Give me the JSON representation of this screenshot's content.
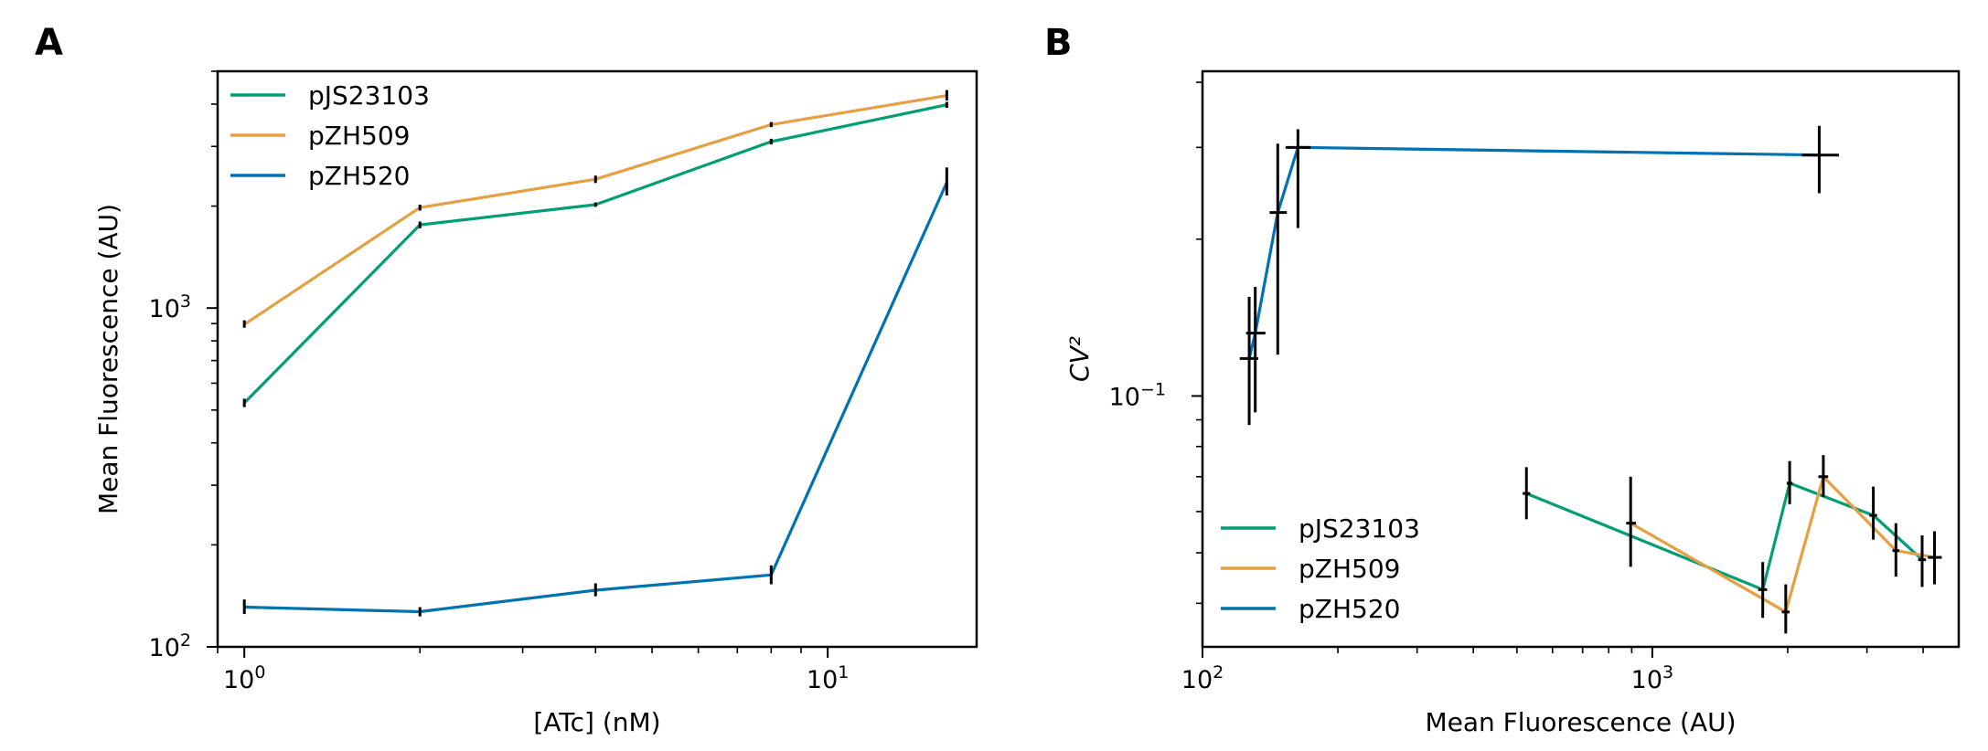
{
  "panels": {
    "a_label": "A",
    "b_label": "B"
  },
  "chart_data": [
    {
      "type": "line",
      "panel": "A",
      "xlabel": "[ATc] (nM)",
      "ylabel": "Mean Fluorescence (AU)",
      "xscale": "log",
      "yscale": "log",
      "xlim": [
        0.9,
        18
      ],
      "ylim": [
        100,
        5000
      ],
      "x_ticks": [
        {
          "value": 1,
          "base": "10",
          "exp": "0"
        },
        {
          "value": 10,
          "base": "10",
          "exp": "1"
        }
      ],
      "y_ticks": [
        {
          "value": 100,
          "base": "10",
          "exp": "2"
        },
        {
          "value": 1000,
          "base": "10",
          "exp": "3"
        }
      ],
      "legend_position": "top-left",
      "grid": false,
      "series": [
        {
          "name": "pJS23103",
          "color": "#009e73",
          "points": [
            {
              "x": 1,
              "y": 525,
              "y_lo": 510,
              "y_hi": 540
            },
            {
              "x": 2,
              "y": 1760,
              "y_lo": 1720,
              "y_hi": 1800
            },
            {
              "x": 4,
              "y": 2020,
              "y_lo": 1990,
              "y_hi": 2050
            },
            {
              "x": 8,
              "y": 3100,
              "y_lo": 3040,
              "y_hi": 3160
            },
            {
              "x": 16,
              "y": 3980,
              "y_lo": 3900,
              "y_hi": 4060
            }
          ]
        },
        {
          "name": "pZH509",
          "color": "#e69f41",
          "points": [
            {
              "x": 1,
              "y": 895,
              "y_lo": 875,
              "y_hi": 920
            },
            {
              "x": 2,
              "y": 1980,
              "y_lo": 1940,
              "y_hi": 2020
            },
            {
              "x": 4,
              "y": 2400,
              "y_lo": 2340,
              "y_hi": 2460
            },
            {
              "x": 8,
              "y": 3480,
              "y_lo": 3420,
              "y_hi": 3540
            },
            {
              "x": 16,
              "y": 4240,
              "y_lo": 4100,
              "y_hi": 4400
            }
          ]
        },
        {
          "name": "pZH520",
          "color": "#0072b2",
          "points": [
            {
              "x": 1,
              "y": 131,
              "y_lo": 125,
              "y_hi": 138
            },
            {
              "x": 2,
              "y": 127,
              "y_lo": 123,
              "y_hi": 131
            },
            {
              "x": 4,
              "y": 147,
              "y_lo": 141,
              "y_hi": 154
            },
            {
              "x": 8,
              "y": 163,
              "y_lo": 153,
              "y_hi": 174
            },
            {
              "x": 16,
              "y": 2350,
              "y_lo": 2150,
              "y_hi": 2600
            }
          ]
        }
      ]
    },
    {
      "type": "scatter",
      "panel": "B",
      "xlabel": "Mean Fluorescence (AU)",
      "ylabel": "CV²",
      "xscale": "log",
      "yscale": "log",
      "xlim": [
        100,
        4800
      ],
      "ylim": [
        0.033,
        0.42
      ],
      "x_ticks": [
        {
          "value": 100,
          "base": "10",
          "exp": "2"
        },
        {
          "value": 1000,
          "base": "10",
          "exp": "3"
        }
      ],
      "y_ticks": [
        {
          "value": 0.1,
          "base": "10",
          "exp": "−1"
        }
      ],
      "legend_position": "bottom-left",
      "grid": false,
      "series": [
        {
          "name": "pJS23103",
          "color": "#009e73",
          "points": [
            {
              "x": 525,
              "y": 0.065,
              "x_lo": 515,
              "x_hi": 535,
              "y_lo": 0.058,
              "y_hi": 0.073
            },
            {
              "x": 1760,
              "y": 0.0425,
              "x_lo": 1720,
              "x_hi": 1800,
              "y_lo": 0.0375,
              "y_hi": 0.048
            },
            {
              "x": 2020,
              "y": 0.068,
              "x_lo": 1990,
              "x_hi": 2050,
              "y_lo": 0.062,
              "y_hi": 0.075
            },
            {
              "x": 3100,
              "y": 0.059,
              "x_lo": 3040,
              "x_hi": 3160,
              "y_lo": 0.053,
              "y_hi": 0.067
            },
            {
              "x": 3980,
              "y": 0.0485,
              "x_lo": 3900,
              "x_hi": 4060,
              "y_lo": 0.043,
              "y_hi": 0.054
            }
          ]
        },
        {
          "name": "pZH509",
          "color": "#e69f41",
          "points": [
            {
              "x": 895,
              "y": 0.057,
              "x_lo": 875,
              "x_hi": 920,
              "y_lo": 0.047,
              "y_hi": 0.07
            },
            {
              "x": 1980,
              "y": 0.0385,
              "x_lo": 1940,
              "x_hi": 2020,
              "y_lo": 0.035,
              "y_hi": 0.0435
            },
            {
              "x": 2400,
              "y": 0.07,
              "x_lo": 2340,
              "x_hi": 2460,
              "y_lo": 0.064,
              "y_hi": 0.077
            },
            {
              "x": 3480,
              "y": 0.0505,
              "x_lo": 3420,
              "x_hi": 3540,
              "y_lo": 0.045,
              "y_hi": 0.057
            },
            {
              "x": 4240,
              "y": 0.049,
              "x_lo": 4100,
              "x_hi": 4400,
              "y_lo": 0.0435,
              "y_hi": 0.055
            }
          ]
        },
        {
          "name": "pZH520",
          "color": "#0072b2",
          "points": [
            {
              "x": 127,
              "y": 0.118,
              "x_lo": 121,
              "x_hi": 133,
              "y_lo": 0.088,
              "y_hi": 0.155
            },
            {
              "x": 131,
              "y": 0.132,
              "x_lo": 125,
              "x_hi": 138,
              "y_lo": 0.093,
              "y_hi": 0.162
            },
            {
              "x": 147,
              "y": 0.225,
              "x_lo": 141,
              "x_hi": 154,
              "y_lo": 0.12,
              "y_hi": 0.305
            },
            {
              "x": 163,
              "y": 0.3,
              "x_lo": 153,
              "x_hi": 174,
              "y_lo": 0.21,
              "y_hi": 0.325
            },
            {
              "x": 2350,
              "y": 0.29,
              "x_lo": 2150,
              "x_hi": 2600,
              "y_lo": 0.245,
              "y_hi": 0.33
            }
          ]
        }
      ]
    }
  ]
}
